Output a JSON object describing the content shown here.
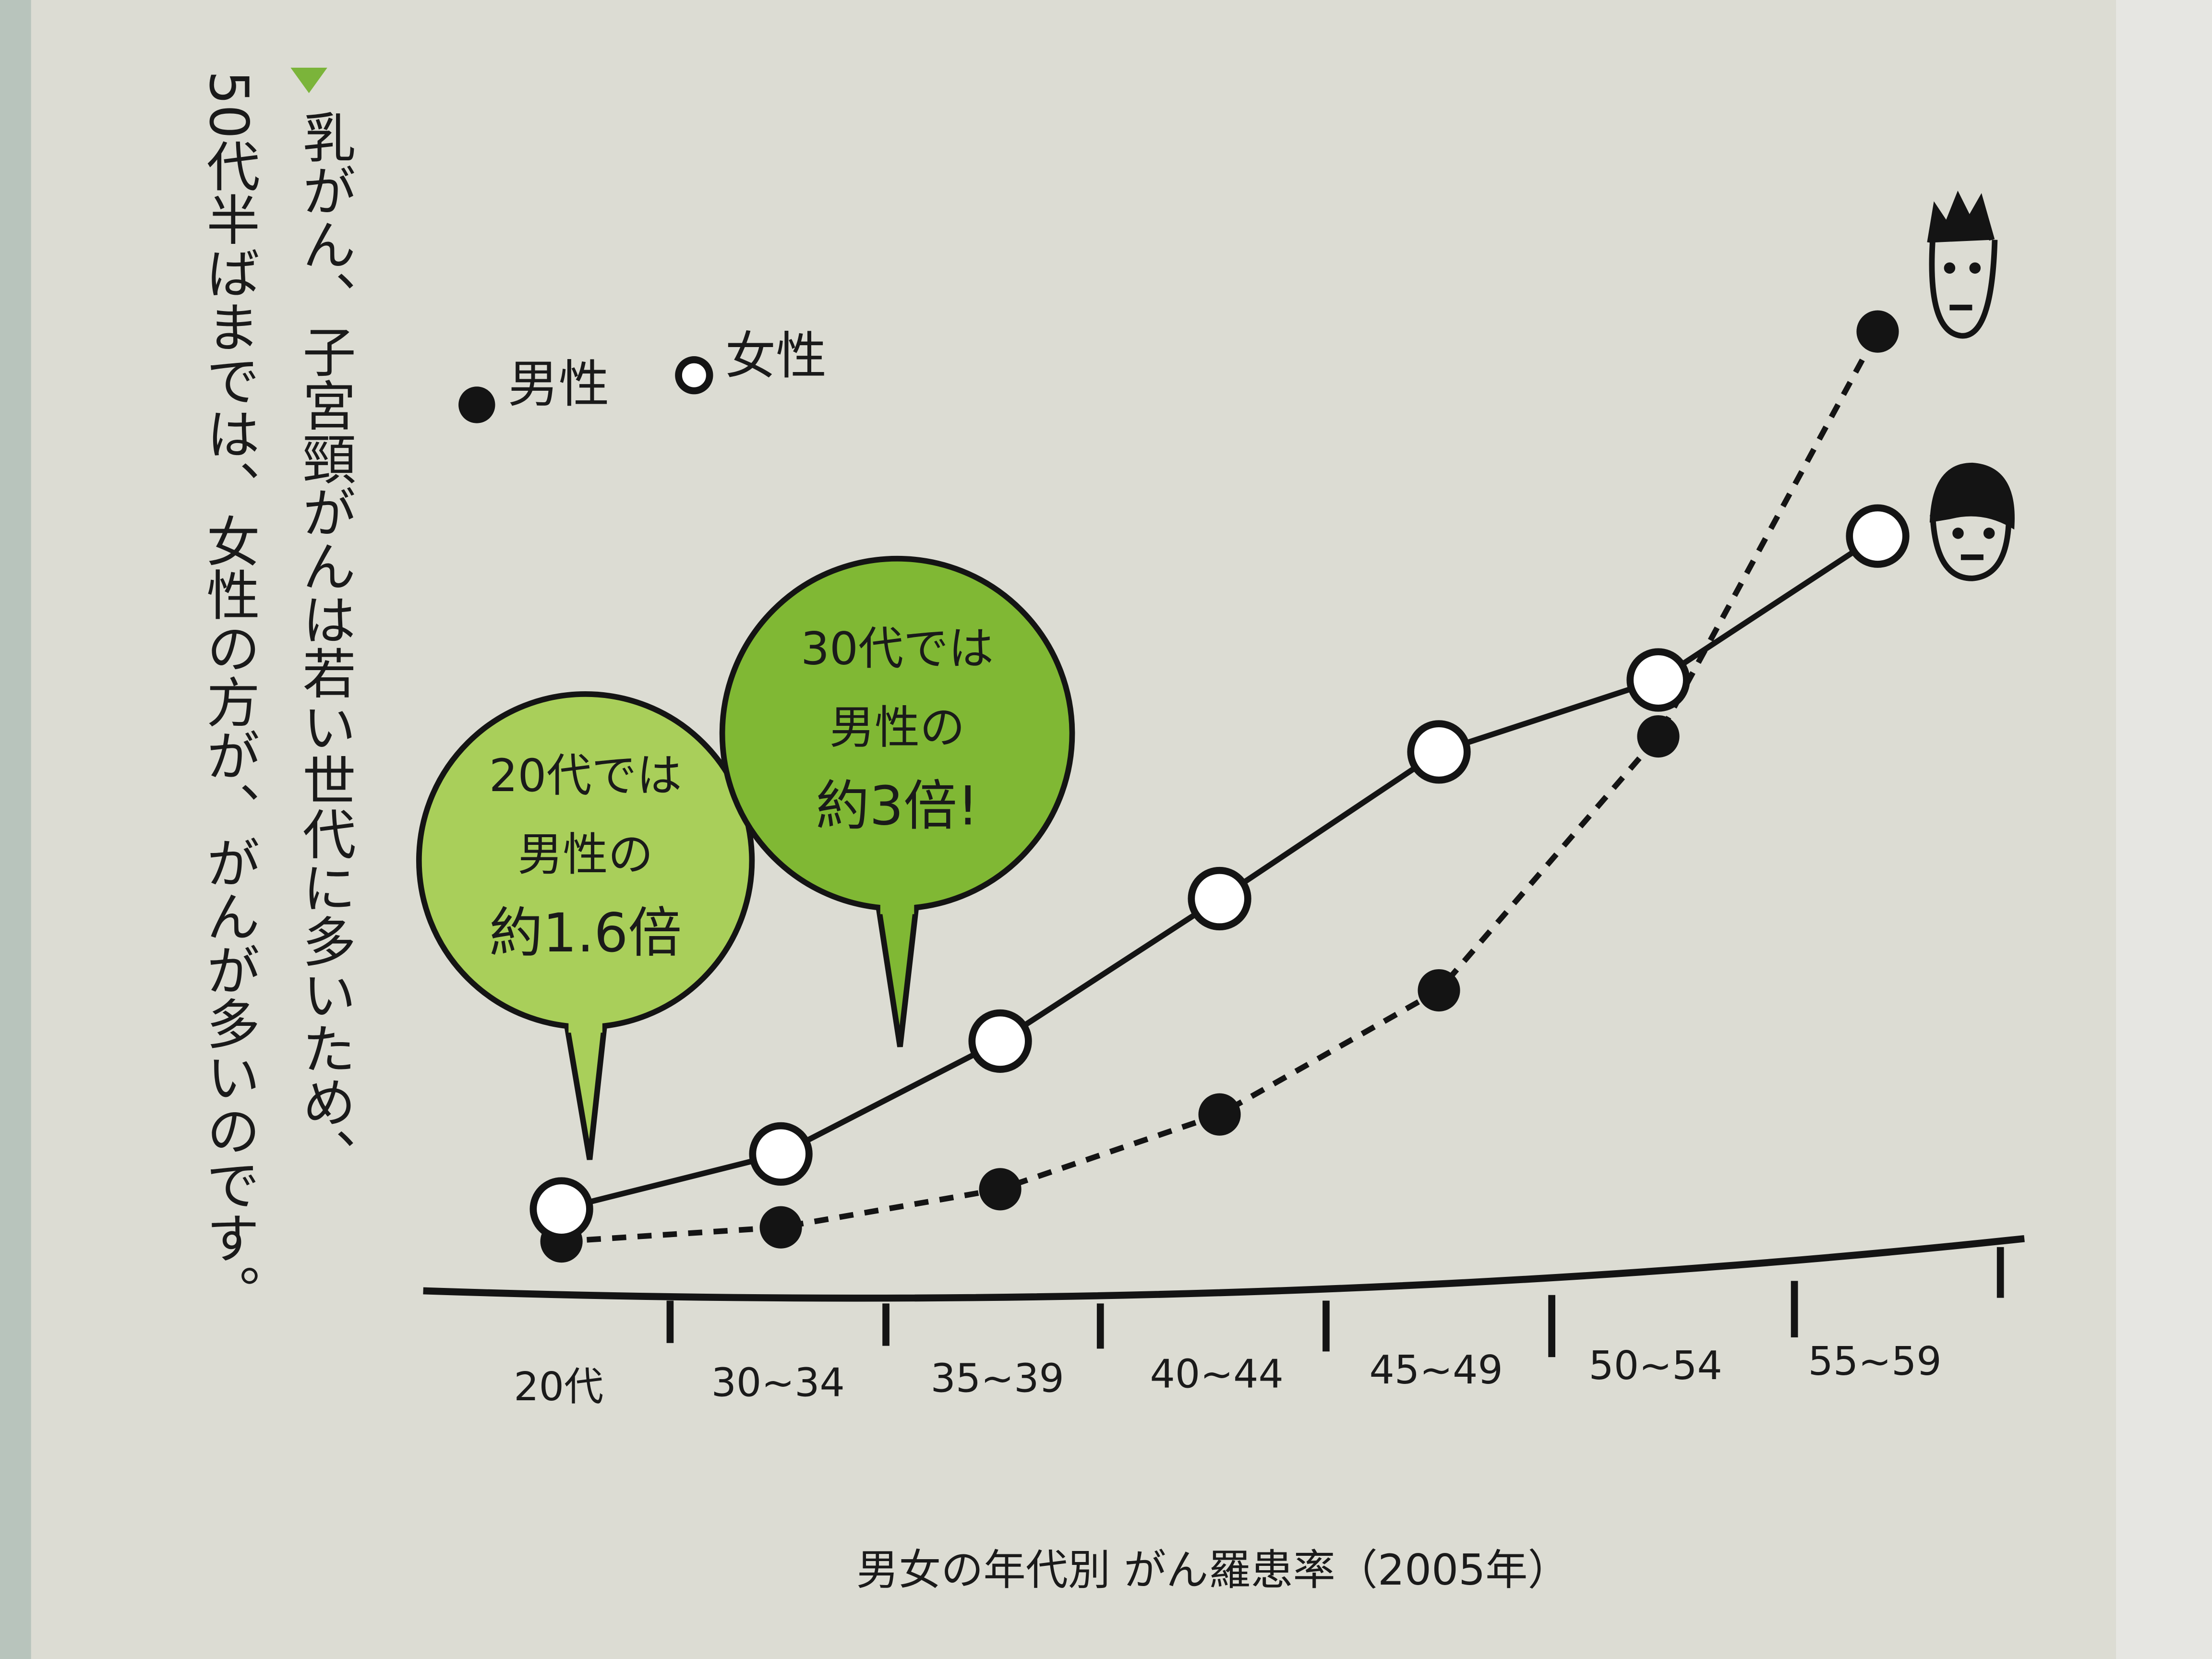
{
  "chart_data": {
    "type": "line",
    "note_columns": [
      "乳がん、子宮頸がんは若い世代に多いため、",
      "50代半ばまでは、女性の方が、がんが多いのです。"
    ],
    "caption": "男女の年代別 がん羅患率（2005年）",
    "categories": [
      "20代",
      "30~34",
      "35~39",
      "40~44",
      "45~49",
      "50~54",
      "55~59"
    ],
    "series": [
      {
        "name": "男性",
        "color": "#141414",
        "line_style": "dashed",
        "marker_fill": "filled",
        "values": [
          35,
          45,
          72,
          125,
          213,
          393,
          680
        ]
      },
      {
        "name": "女性",
        "color": "#141414",
        "line_style": "solid",
        "marker_fill": "open",
        "values": [
          58,
          97,
          177,
          278,
          382,
          433,
          535
        ]
      }
    ],
    "annotations": [
      {
        "lines": [
          "20代では",
          "男性の",
          "約1.6倍"
        ]
      },
      {
        "lines": [
          "30代では",
          "男性の",
          "約3倍!"
        ]
      }
    ],
    "ylim": [
      0,
      700
    ],
    "legend": "upper left"
  }
}
